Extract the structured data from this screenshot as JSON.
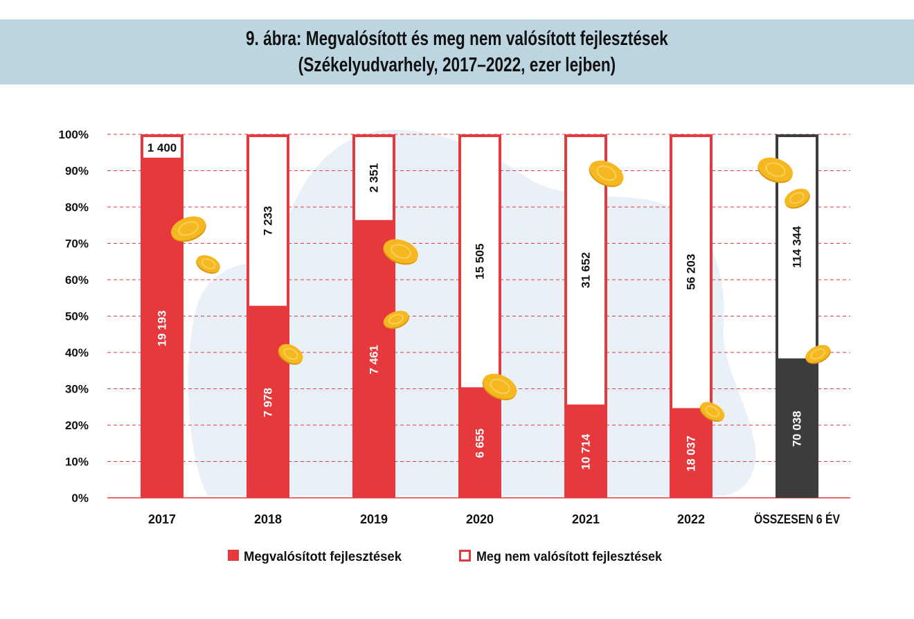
{
  "title": {
    "line1": "9. ábra: Megvalósított és meg nem valósított fejlesztések",
    "line2": "(Székelyudvarhely, 2017–2022, ezer lejben)"
  },
  "colors": {
    "realized": "#e5393d",
    "unrealized_border": "#e5393d",
    "total_realized": "#3d3d3d",
    "total_border": "#3d3d3d",
    "grid": "#e5393d",
    "coin": "#f5b820",
    "blob": "#e9f0f7",
    "title_bg": "#bcd5e0"
  },
  "chart_data": {
    "type": "bar",
    "stacked": true,
    "normalized": "percent",
    "categories": [
      "2017",
      "2018",
      "2019",
      "2020",
      "2021",
      "2022",
      "ÖSSZESEN 6 ÉV"
    ],
    "series": [
      {
        "name": "Megvalósított fejlesztések",
        "values": [
          19193,
          7978,
          7461,
          6655,
          10714,
          18037,
          70038
        ]
      },
      {
        "name": "Meg nem valósított fejlesztések",
        "values": [
          1400,
          7233,
          2351,
          15505,
          31652,
          56203,
          114344
        ]
      }
    ],
    "value_labels": {
      "realized": [
        "19 193",
        "7 978",
        "7 461",
        "6 655",
        "10 714",
        "18 037",
        "70 038"
      ],
      "unrealized": [
        "1 400",
        "7 233",
        "2 351",
        "15 505",
        "31 652",
        "56 203",
        "114 344"
      ]
    },
    "yticks": [
      "0%",
      "10%",
      "20%",
      "30%",
      "40%",
      "50%",
      "60%",
      "70%",
      "80%",
      "90%",
      "100%"
    ],
    "ylim": [
      0,
      100
    ],
    "grid": true,
    "legend_position": "bottom",
    "xlabel": "",
    "ylabel": ""
  }
}
